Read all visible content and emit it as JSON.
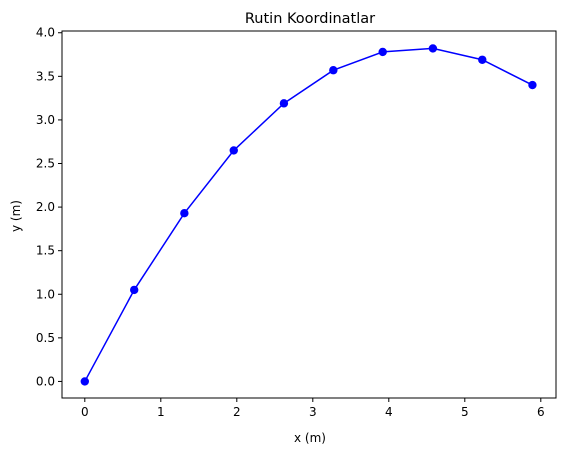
{
  "chart_data": {
    "type": "line",
    "title": "Rutin Koordinatlar",
    "xlabel": "x (m)",
    "ylabel": "y (m)",
    "xlim": [
      -0.3,
      6.2
    ],
    "ylim": [
      -0.19,
      4.02
    ],
    "xticks": [
      0,
      1,
      2,
      3,
      4,
      5,
      6
    ],
    "xtick_labels": [
      "0",
      "1",
      "2",
      "3",
      "4",
      "5",
      "6"
    ],
    "yticks": [
      0.0,
      0.5,
      1.0,
      1.5,
      2.0,
      2.5,
      3.0,
      3.5,
      4.0
    ],
    "ytick_labels": [
      "0.0",
      "0.5",
      "1.0",
      "1.5",
      "2.0",
      "2.5",
      "3.0",
      "3.5",
      "4.0"
    ],
    "grid": false,
    "series": [
      {
        "color": "#0000ff",
        "marker": "circle",
        "x": [
          0,
          0.65,
          1.31,
          1.96,
          2.62,
          3.27,
          3.92,
          4.58,
          5.23,
          5.89
        ],
        "y": [
          0,
          1.05,
          1.93,
          2.65,
          3.19,
          3.57,
          3.78,
          3.82,
          3.69,
          3.4
        ]
      }
    ]
  }
}
